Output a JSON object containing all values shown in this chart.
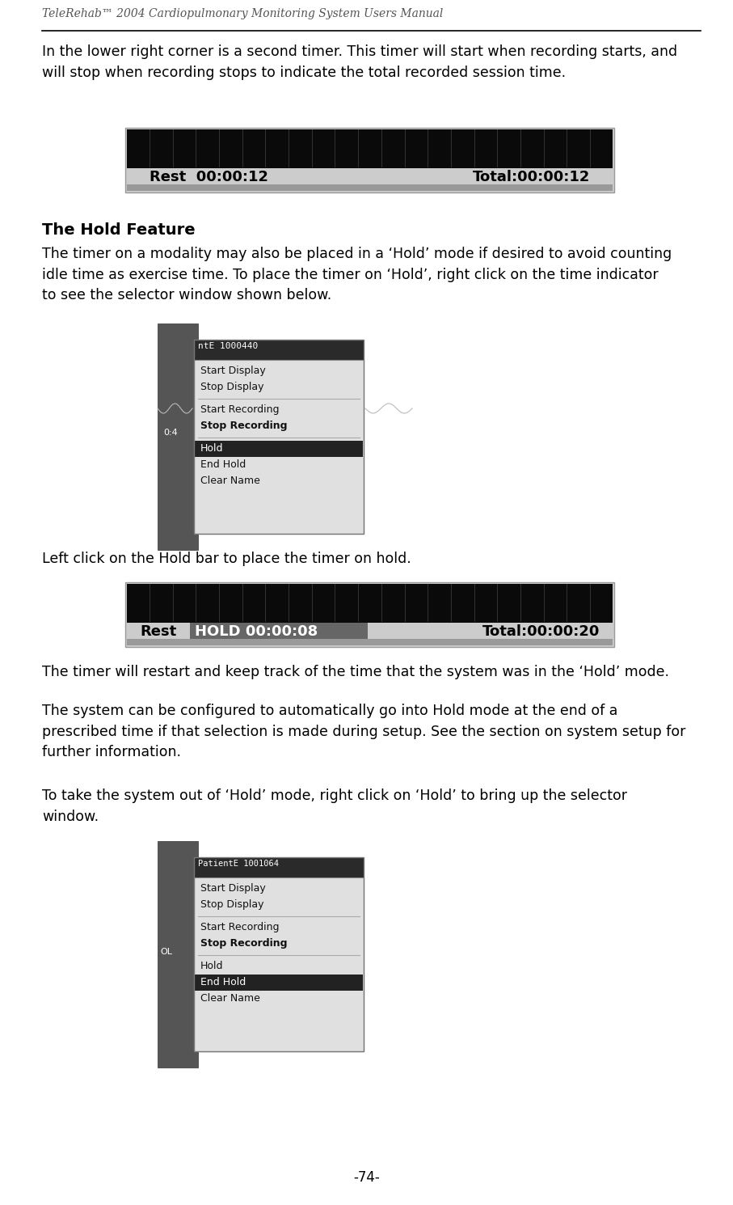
{
  "bg_color": "#ffffff",
  "page_width": 9.07,
  "page_height": 14.9,
  "dpi": 100,
  "header_title": "TeleRehab™ 2004 Cardiopulmonary Monitoring System Users Manual",
  "footer_text": "-74-",
  "paragraph1": "In the lower right corner is a second timer. This timer will start when recording starts, and\nwill stop when recording stops to indicate the total recorded session time.",
  "section_title": "The Hold Feature",
  "paragraph2": "The timer on a modality may also be placed in a ‘Hold’ mode if desired to avoid counting\nidle time as exercise time. To place the timer on ‘Hold’, right click on the time indicator\nto see the selector window shown below.",
  "paragraph3": "Left click on the Hold bar to place the timer on hold.",
  "paragraph4": "The timer will restart and keep track of the time that the system was in the ‘Hold’ mode.",
  "paragraph5": "The system can be configured to automatically go into Hold mode at the end of a\nprescribed time if that selection is made during setup. See the section on system setup for\nfurther information.",
  "paragraph6": "To take the system out of ‘Hold’ mode, right click on ‘Hold’ to bring up the selector\nwindow.",
  "header_color": "#555555",
  "text_color": "#000000",
  "header_line_color": "#000000"
}
